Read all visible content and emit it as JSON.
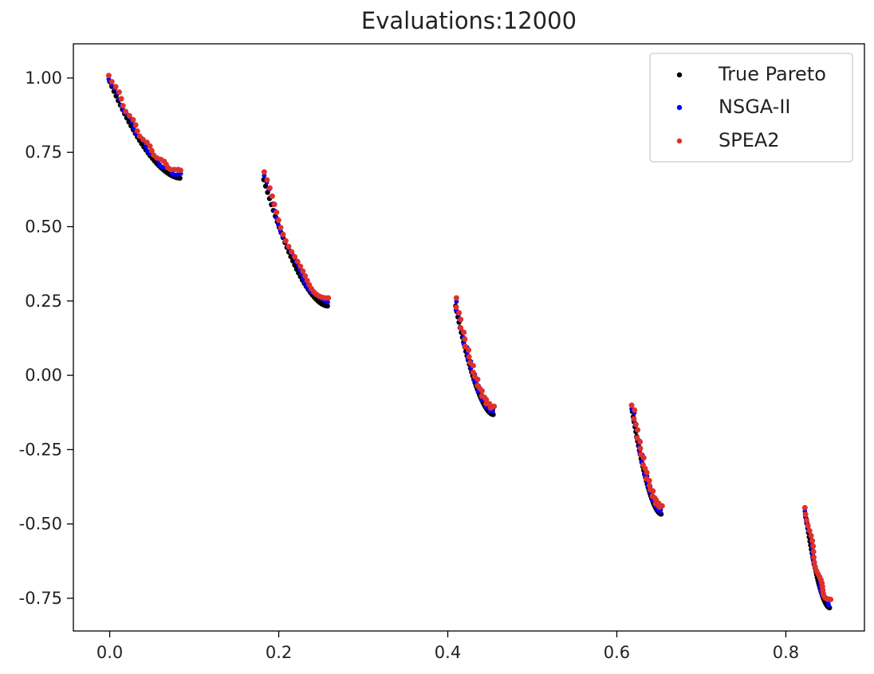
{
  "chart_data": {
    "type": "scatter",
    "title": "Evaluations:12000",
    "xlabel": "",
    "ylabel": "",
    "xlim": [
      -0.043,
      0.893
    ],
    "ylim": [
      -0.86,
      1.115
    ],
    "x_ticks": [
      0.0,
      0.2,
      0.4,
      0.6,
      0.8
    ],
    "x_tick_labels": [
      "0.0",
      "0.2",
      "0.4",
      "0.6",
      "0.8"
    ],
    "y_ticks": [
      1.0,
      0.75,
      0.5,
      0.25,
      0.0,
      -0.25,
      -0.5,
      -0.75
    ],
    "y_tick_labels": [
      "1.00",
      "0.75",
      "0.50",
      "0.25",
      "0.00",
      "-0.25",
      "-0.50",
      "-0.75"
    ],
    "grid": false,
    "legend_position": "top-right",
    "segments": [
      {
        "x_start": 0.0,
        "x_end": 0.0831,
        "y_start": 1.0,
        "y_end": 0.675
      },
      {
        "x_start": 0.1822,
        "x_end": 0.2577,
        "y_start": 0.67,
        "y_end": 0.245
      },
      {
        "x_start": 0.4093,
        "x_end": 0.4538,
        "y_start": 0.245,
        "y_end": -0.12
      },
      {
        "x_start": 0.6184,
        "x_end": 0.6525,
        "y_start": -0.11,
        "y_end": -0.455
      },
      {
        "x_start": 0.8233,
        "x_end": 0.8518,
        "y_start": -0.455,
        "y_end": -0.77
      }
    ],
    "series": [
      {
        "name": "True Pareto",
        "color": "#000000"
      },
      {
        "name": "NSGA-II",
        "color": "#0000ff"
      },
      {
        "name": "SPEA2",
        "color": "#e0302a"
      }
    ]
  }
}
